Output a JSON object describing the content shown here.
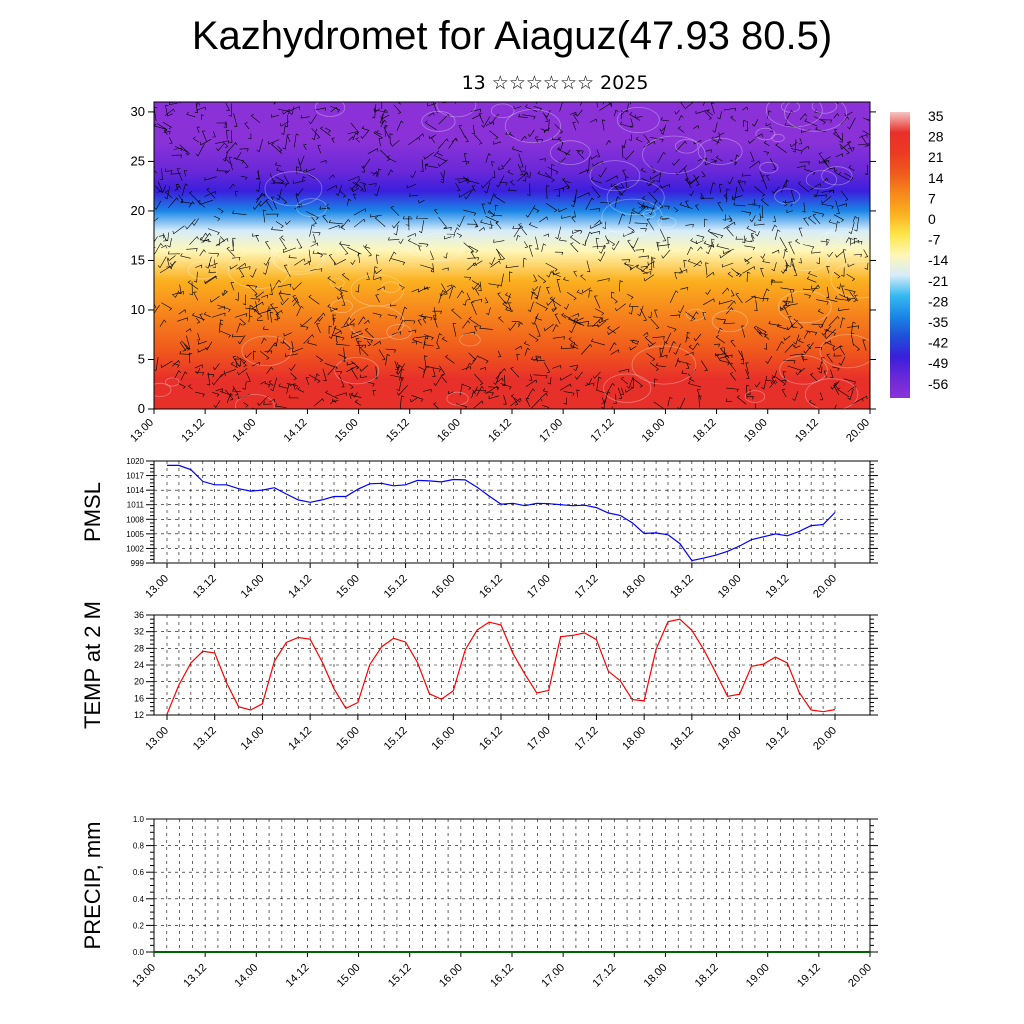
{
  "title": "Kazhydromet for Aiaguz(47.93 80.5)",
  "subtitle": "13 ☆☆☆☆☆☆ 2025",
  "colors": {
    "pmsl_line": "#0000ff",
    "temp_line": "#ff0000",
    "precip_line": "#006400",
    "grid": "#000000"
  },
  "chart_data": [
    {
      "name": "cross-section",
      "type": "heatmap",
      "ylim": [
        0,
        31
      ],
      "yticks": [
        "0",
        "5",
        "10",
        "15",
        "20",
        "25",
        "30"
      ],
      "xticks": [
        "13.00",
        "13.12",
        "14.00",
        "14.12",
        "15.00",
        "15.12",
        "16.00",
        "16.12",
        "17.00",
        "17.12",
        "18.00",
        "18.12",
        "19.00",
        "19.12",
        "20.00"
      ],
      "colorbar_labels": [
        "35",
        "28",
        "21",
        "14",
        "7",
        "0",
        "-7",
        "-14",
        "-21",
        "-28",
        "-35",
        "-42",
        "-49",
        "-56"
      ],
      "colorbar_colors": [
        "#f4c4c4",
        "#e8302a",
        "#ec3a22",
        "#f05a1c",
        "#f7891c",
        "#fbb120",
        "#fde64a",
        "#fff7b8",
        "#d6ecfa",
        "#36b8f0",
        "#1a86e6",
        "#1f4ed8",
        "#3a1fdc",
        "#6a28d8",
        "#8a32d8"
      ],
      "temperature_profile_c": [
        [
          0,
          30
        ],
        [
          3,
          25
        ],
        [
          6,
          16
        ],
        [
          10,
          5
        ],
        [
          13,
          0
        ],
        [
          16,
          -12
        ],
        [
          18,
          -20
        ],
        [
          20,
          -33
        ],
        [
          22,
          -44
        ],
        [
          24,
          -53
        ],
        [
          27,
          -57
        ],
        [
          31,
          -60
        ]
      ]
    },
    {
      "name": "PMSL",
      "type": "line",
      "ylabel": "PMSL",
      "ylim": [
        999,
        1020
      ],
      "yticks": [
        "999",
        "1002",
        "1005",
        "1008",
        "1011",
        "1014",
        "1017",
        "1020"
      ],
      "xticks": [
        "13.00",
        "13.12",
        "14.00",
        "14.12",
        "15.00",
        "15.12",
        "16.00",
        "16.12",
        "17.00",
        "17.12",
        "18.00",
        "18.12",
        "19.00",
        "19.12",
        "20.00"
      ],
      "x": [
        0,
        3,
        6,
        9,
        12,
        15,
        18,
        21,
        24,
        27,
        30,
        33,
        36,
        39,
        42,
        45,
        48,
        51,
        54,
        57,
        60,
        63,
        66,
        69,
        72,
        75,
        78,
        81,
        84,
        87,
        90,
        93,
        96,
        99,
        102,
        105,
        108,
        111,
        114,
        117,
        120,
        123,
        126,
        129,
        132,
        135,
        138,
        141,
        144,
        147,
        150,
        153,
        156,
        159,
        162,
        165,
        168
      ],
      "values": [
        1019.1,
        1019.1,
        1018.2,
        1015.8,
        1015.1,
        1015.1,
        1014.3,
        1013.8,
        1014.0,
        1014.5,
        1013.2,
        1012.0,
        1011.5,
        1012.0,
        1012.7,
        1012.7,
        1014.2,
        1015.3,
        1015.4,
        1014.9,
        1015.1,
        1016.0,
        1015.9,
        1015.7,
        1016.2,
        1016.1,
        1014.6,
        1012.8,
        1011.1,
        1011.3,
        1010.8,
        1011.3,
        1011.2,
        1011.0,
        1010.8,
        1010.9,
        1010.4,
        1009.3,
        1008.8,
        1007.3,
        1005.1,
        1005.2,
        1004.8,
        1003.0,
        999.5,
        1000.0,
        1000.6,
        1001.4,
        1002.5,
        1003.8,
        1004.4,
        1005.0,
        1004.6,
        1005.5,
        1006.7,
        1006.9,
        1009.4
      ]
    },
    {
      "name": "TEMP at 2 M",
      "type": "line",
      "ylabel": "TEMP at 2 M",
      "ylim": [
        12,
        36
      ],
      "yticks": [
        "12",
        "16",
        "20",
        "24",
        "28",
        "32",
        "36"
      ],
      "xticks": [
        "13.00",
        "13.12",
        "14.00",
        "14.12",
        "15.00",
        "15.12",
        "16.00",
        "16.12",
        "17.00",
        "17.12",
        "18.00",
        "18.12",
        "19.00",
        "19.12",
        "20.00"
      ],
      "x": [
        0,
        3,
        6,
        9,
        12,
        15,
        18,
        21,
        24,
        27,
        30,
        33,
        36,
        39,
        42,
        45,
        48,
        51,
        54,
        57,
        60,
        63,
        66,
        69,
        72,
        75,
        78,
        81,
        84,
        87,
        90,
        93,
        96,
        99,
        102,
        105,
        108,
        111,
        114,
        117,
        120,
        123,
        126,
        129,
        132,
        135,
        138,
        141,
        144,
        147,
        150,
        153,
        156,
        159,
        162,
        165,
        168
      ],
      "values": [
        12.2,
        19.2,
        24.5,
        27.3,
        26.9,
        19.7,
        14.0,
        13.2,
        14.7,
        24.9,
        29.4,
        30.6,
        30.2,
        24.8,
        18.3,
        13.6,
        15.0,
        24.1,
        28.4,
        30.4,
        29.5,
        24.6,
        17.1,
        15.8,
        17.8,
        27.6,
        32.4,
        34.3,
        33.6,
        26.8,
        21.8,
        17.3,
        17.9,
        30.8,
        31.1,
        31.7,
        30.1,
        22.5,
        20.2,
        15.7,
        15.4,
        27.8,
        34.4,
        35.0,
        32.3,
        27.7,
        22.2,
        16.5,
        17.0,
        23.7,
        24.2,
        25.9,
        24.5,
        17.4,
        13.2,
        12.8,
        13.3
      ]
    },
    {
      "name": "PRECIP",
      "type": "line",
      "ylabel": "PRECIP, mm",
      "ylim": [
        0.0,
        1.0
      ],
      "yticks": [
        "0.0",
        "0.2",
        "0.4",
        "0.6",
        "0.8",
        "1.0"
      ],
      "xticks": [
        "13.00",
        "13.12",
        "14.00",
        "14.12",
        "15.00",
        "15.12",
        "16.00",
        "16.12",
        "17.00",
        "17.12",
        "18.00",
        "18.12",
        "19.00",
        "19.12",
        "20.00"
      ],
      "values_mm": 0.0
    }
  ]
}
